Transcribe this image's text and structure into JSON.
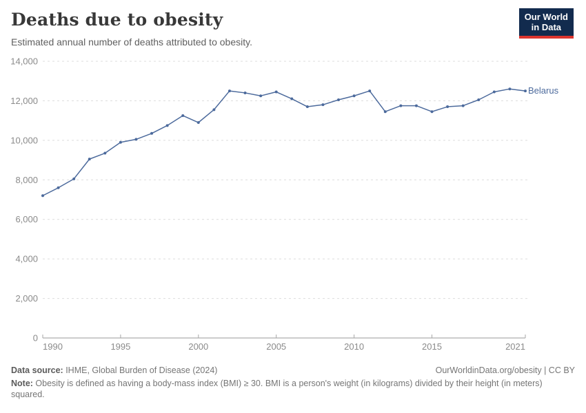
{
  "header": {
    "title": "Deaths due to obesity",
    "subtitle": "Estimated annual number of deaths attributed to obesity.",
    "logo_line1": "Our World",
    "logo_line2": "in Data"
  },
  "chart_data": {
    "type": "line",
    "title": "Deaths due to obesity",
    "subtitle": "Estimated annual number of deaths attributed to obesity.",
    "xlim": [
      1990,
      2021
    ],
    "ylim": [
      0,
      14000
    ],
    "x_ticks": [
      1990,
      1995,
      2000,
      2005,
      2010,
      2015,
      2021
    ],
    "y_ticks": [
      0,
      2000,
      4000,
      6000,
      8000,
      10000,
      12000,
      14000
    ],
    "y_tick_labels": [
      "0",
      "2,000",
      "4,000",
      "6,000",
      "8,000",
      "10,000",
      "12,000",
      "14,000"
    ],
    "grid": "horizontal-dashed",
    "legend_position": "end-of-line-label",
    "series": [
      {
        "name": "Belarus",
        "color": "#4c6a9c",
        "x": [
          1990,
          1991,
          1992,
          1993,
          1994,
          1995,
          1996,
          1997,
          1998,
          1999,
          2000,
          2001,
          2002,
          2003,
          2004,
          2005,
          2006,
          2007,
          2008,
          2009,
          2010,
          2011,
          2012,
          2013,
          2014,
          2015,
          2016,
          2017,
          2018,
          2019,
          2020,
          2021
        ],
        "values": [
          7200,
          7600,
          8050,
          9050,
          9350,
          9900,
          10050,
          10350,
          10750,
          11250,
          10900,
          11550,
          12500,
          12400,
          12250,
          12450,
          12100,
          11700,
          11800,
          12050,
          12250,
          12500,
          11450,
          11750,
          11750,
          11450,
          11700,
          11750,
          12050,
          12450,
          12600,
          12500
        ]
      }
    ]
  },
  "footer": {
    "source_label": "Data source:",
    "source_text": " IHME, Global Burden of Disease (2024)",
    "rights": "OurWorldinData.org/obesity | CC BY",
    "note_label": "Note:",
    "note_text": " Obesity is defined as having a body-mass index (BMI) ≥ 30. BMI is a person's weight (in kilograms) divided by their height (in meters) squared."
  },
  "colors": {
    "line": "#4c6a9c",
    "grid": "#dcdcdc",
    "axis": "#999999",
    "tick": "#a6a6a6",
    "tick_label": "#8a8a8a",
    "logo_bg": "#122b4e",
    "logo_accent": "#dc352e"
  }
}
